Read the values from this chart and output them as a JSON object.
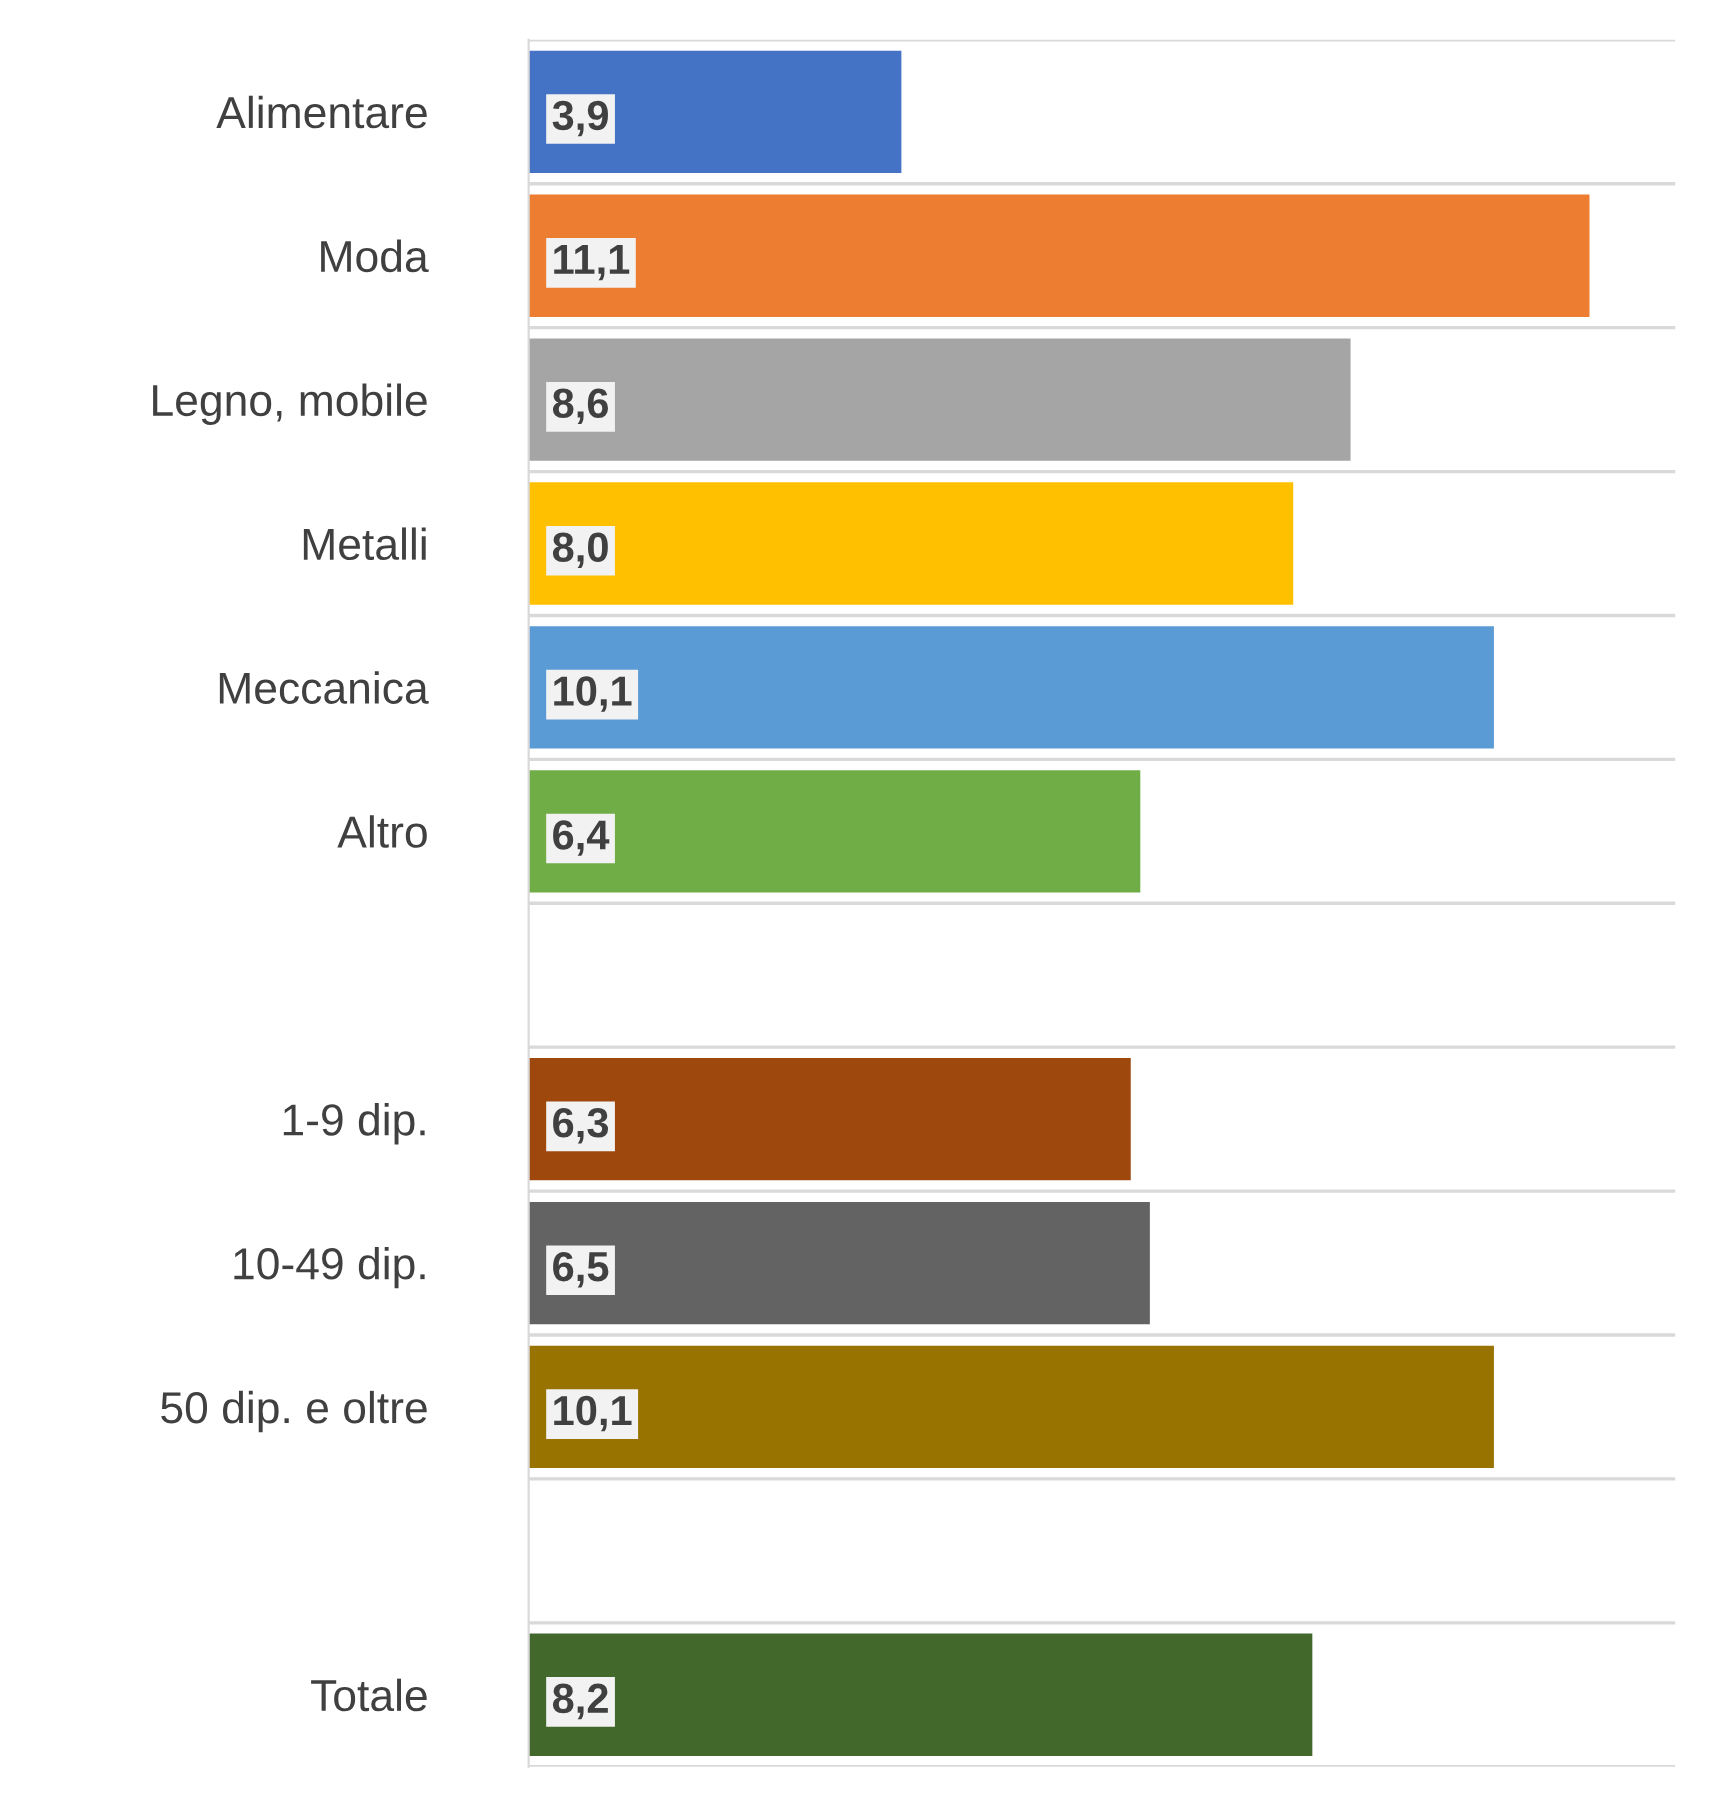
{
  "chart_data": {
    "type": "bar",
    "orientation": "horizontal",
    "categories": [
      "Alimentare",
      "Moda",
      "Legno, mobile",
      "Metalli",
      "Meccanica",
      "Altro",
      null,
      "1-9 dip.",
      "10-49 dip.",
      "50 dip. e oltre",
      null,
      "Totale"
    ],
    "values": [
      3.9,
      11.1,
      8.6,
      8.0,
      10.1,
      6.4,
      null,
      6.3,
      6.5,
      10.1,
      null,
      8.2
    ],
    "colors": [
      "#4472c4",
      "#ed7d31",
      "#a5a5a5",
      "#ffc000",
      "#5b9bd5",
      "#70ad47",
      null,
      "#9e480e",
      "#636363",
      "#997300",
      null,
      "#43682b"
    ],
    "value_labels": [
      "3,9",
      "11,1",
      "8,6",
      "8,0",
      "10,1",
      "6,4",
      null,
      "6,3",
      "6,5",
      "10,1",
      null,
      "8,2"
    ],
    "xlim": [
      0,
      12
    ],
    "tick_labels": "y",
    "grid": "y",
    "legend": false
  }
}
